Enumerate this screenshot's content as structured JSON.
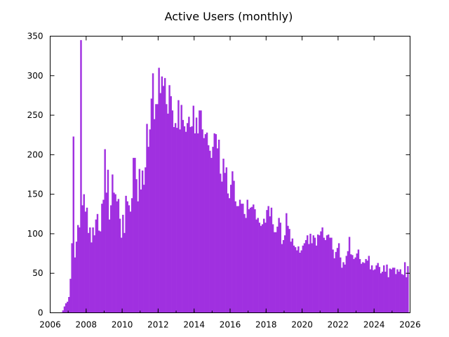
{
  "chart_data": {
    "type": "bar",
    "title": "Active Users (monthly)",
    "xlabel": "",
    "ylabel": "",
    "xlim": [
      2006,
      2026
    ],
    "ylim": [
      0,
      350
    ],
    "x_ticks": [
      "2006",
      "2008",
      "2010",
      "2012",
      "2014",
      "2016",
      "2018",
      "2020",
      "2022",
      "2024",
      "2026"
    ],
    "y_ticks": [
      "0",
      "50",
      "100",
      "150",
      "200",
      "250",
      "300",
      "350"
    ],
    "grid": false,
    "bar_color": "#a030e0",
    "start": "2006-09",
    "values": [
      3,
      8,
      12,
      14,
      20,
      43,
      88,
      223,
      70,
      90,
      111,
      108,
      345,
      136,
      150,
      128,
      133,
      101,
      108,
      89,
      108,
      98,
      118,
      125,
      104,
      103,
      138,
      143,
      207,
      152,
      181,
      118,
      136,
      175,
      152,
      150,
      141,
      144,
      119,
      95,
      124,
      101,
      148,
      141,
      136,
      128,
      145,
      196,
      196,
      169,
      141,
      182,
      156,
      180,
      162,
      184,
      239,
      210,
      232,
      271,
      303,
      245,
      264,
      264,
      310,
      278,
      299,
      287,
      297,
      264,
      252,
      288,
      274,
      256,
      235,
      240,
      234,
      269,
      232,
      263,
      244,
      236,
      229,
      240,
      248,
      235,
      236,
      262,
      227,
      247,
      227,
      256,
      256,
      232,
      221,
      226,
      228,
      212,
      205,
      196,
      210,
      227,
      226,
      208,
      219,
      176,
      166,
      195,
      177,
      184,
      151,
      145,
      162,
      179,
      167,
      141,
      135,
      135,
      143,
      138,
      138,
      125,
      120,
      143,
      131,
      133,
      134,
      137,
      131,
      118,
      120,
      114,
      110,
      112,
      119,
      114,
      130,
      135,
      122,
      133,
      112,
      102,
      102,
      109,
      120,
      114,
      87,
      92,
      98,
      126,
      110,
      106,
      90,
      94,
      85,
      83,
      79,
      84,
      76,
      79,
      85,
      88,
      92,
      98,
      87,
      100,
      88,
      98,
      95,
      85,
      99,
      98,
      103,
      108,
      95,
      92,
      98,
      99,
      95,
      95,
      80,
      69,
      77,
      82,
      88,
      70,
      57,
      64,
      61,
      72,
      78,
      96,
      74,
      73,
      68,
      70,
      75,
      80,
      68,
      62,
      64,
      63,
      68,
      66,
      72,
      55,
      60,
      54,
      55,
      60,
      63,
      58,
      50,
      52,
      60,
      52,
      61,
      45,
      56,
      55,
      57,
      57,
      49,
      55,
      52,
      55,
      49,
      48,
      64,
      45,
      59
    ]
  }
}
